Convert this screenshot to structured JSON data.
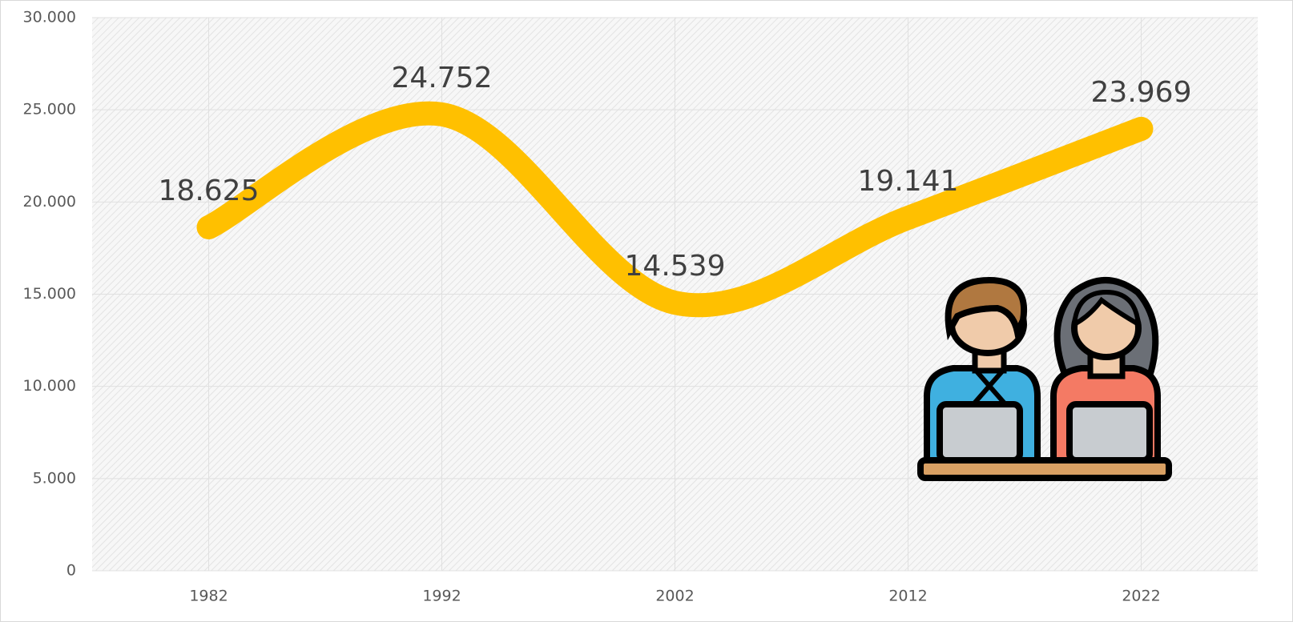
{
  "chart_data": {
    "type": "line",
    "x": [
      1982,
      1992,
      2002,
      2012,
      2022
    ],
    "xlim": [
      1977,
      2027
    ],
    "xticks": [
      1982,
      1992,
      2002,
      2012,
      2022
    ],
    "ylim": [
      0,
      30000
    ],
    "yticks": [
      {
        "value": 0,
        "label": "0"
      },
      {
        "value": 5000,
        "label": "5.000"
      },
      {
        "value": 10000,
        "label": "10.000"
      },
      {
        "value": 15000,
        "label": "15.000"
      },
      {
        "value": 20000,
        "label": "20.000"
      },
      {
        "value": 25000,
        "label": "25.000"
      },
      {
        "value": 30000,
        "label": "30.000"
      }
    ],
    "grid": true,
    "smooth": true,
    "series": [
      {
        "color": "#FFC000",
        "values": [
          18625,
          24752,
          14539,
          19141,
          23969
        ],
        "value_labels": [
          "18.625",
          "24.752",
          "14.539",
          "19.141",
          "23.969"
        ]
      }
    ]
  }
}
